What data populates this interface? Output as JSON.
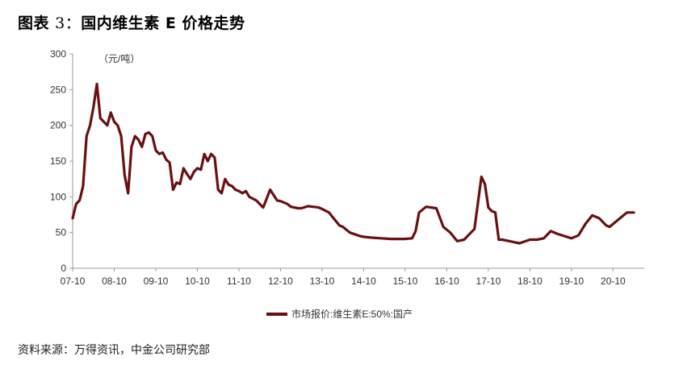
{
  "figure": {
    "label": "图表",
    "number": "3：",
    "title": "国内维生素 E 价格走势"
  },
  "source": "资料来源：万得资讯，中金公司研究部",
  "colors": {
    "series": "#6b0f0f",
    "axis": "#9a9a9a",
    "text": "#333333"
  },
  "chart_data": {
    "type": "line",
    "unit_label": "（元/吨）",
    "ylim": [
      0,
      300
    ],
    "yticks": [
      0,
      50,
      100,
      150,
      200,
      250,
      300
    ],
    "xticks": [
      "07-10",
      "08-10",
      "09-10",
      "10-10",
      "11-10",
      "12-10",
      "13-10",
      "14-10",
      "15-10",
      "16-10",
      "17-10",
      "18-10",
      "19-10",
      "20-10"
    ],
    "grid": false,
    "legend_position": "bottom",
    "series": [
      {
        "name": "市场报价:维生素E:50%:国产",
        "x": [
          "2007-10",
          "2007-11",
          "2007-12",
          "2008-01",
          "2008-02",
          "2008-03",
          "2008-04",
          "2008-05",
          "2008-06",
          "2008-07",
          "2008-08",
          "2008-09",
          "2008-10",
          "2008-11",
          "2008-12",
          "2009-01",
          "2009-02",
          "2009-03",
          "2009-04",
          "2009-05",
          "2009-06",
          "2009-07",
          "2009-08",
          "2009-09",
          "2009-10",
          "2009-11",
          "2009-12",
          "2010-01",
          "2010-02",
          "2010-03",
          "2010-04",
          "2010-05",
          "2010-06",
          "2010-07",
          "2010-08",
          "2010-09",
          "2010-10",
          "2010-11",
          "2010-12",
          "2011-01",
          "2011-02",
          "2011-03",
          "2011-04",
          "2011-05",
          "2011-06",
          "2011-07",
          "2011-08",
          "2011-09",
          "2011-10",
          "2011-11",
          "2011-12",
          "2012-01",
          "2012-03",
          "2012-05",
          "2012-07",
          "2012-09",
          "2012-10",
          "2012-12",
          "2013-01",
          "2013-03",
          "2013-04",
          "2013-06",
          "2013-09",
          "2013-10",
          "2013-12",
          "2014-01",
          "2014-03",
          "2014-04",
          "2014-06",
          "2014-09",
          "2014-10",
          "2014-12",
          "2015-03",
          "2015-06",
          "2015-10",
          "2015-12",
          "2016-01",
          "2016-02",
          "2016-04",
          "2016-07",
          "2016-09",
          "2016-11",
          "2017-01",
          "2017-03",
          "2017-06",
          "2017-08",
          "2017-09",
          "2017-10",
          "2017-11",
          "2017-12",
          "2018-01",
          "2018-02",
          "2018-04",
          "2018-07",
          "2018-10",
          "2018-12",
          "2019-02",
          "2019-04",
          "2019-06",
          "2019-08",
          "2019-10",
          "2019-12",
          "2020-02",
          "2020-04",
          "2020-06",
          "2020-08",
          "2020-09",
          "2020-10",
          "2020-12",
          "2021-02",
          "2021-04"
        ],
        "y": [
          70,
          90,
          95,
          115,
          185,
          200,
          225,
          258,
          210,
          205,
          200,
          218,
          205,
          200,
          185,
          130,
          105,
          170,
          185,
          180,
          170,
          188,
          190,
          185,
          165,
          160,
          162,
          152,
          148,
          110,
          120,
          118,
          140,
          132,
          125,
          135,
          140,
          138,
          160,
          150,
          160,
          155,
          110,
          105,
          125,
          117,
          115,
          110,
          108,
          105,
          108,
          100,
          95,
          85,
          110,
          95,
          94,
          90,
          86,
          84,
          84,
          87,
          85,
          83,
          78,
          72,
          60,
          58,
          50,
          45,
          44,
          43,
          42,
          41,
          41,
          42,
          52,
          78,
          86,
          84,
          58,
          50,
          38,
          40,
          55,
          128,
          118,
          85,
          80,
          78,
          40,
          40,
          38,
          35,
          40,
          40,
          42,
          52,
          48,
          45,
          42,
          46,
          62,
          74,
          70,
          60,
          58,
          62,
          70,
          78,
          78
        ]
      }
    ]
  }
}
